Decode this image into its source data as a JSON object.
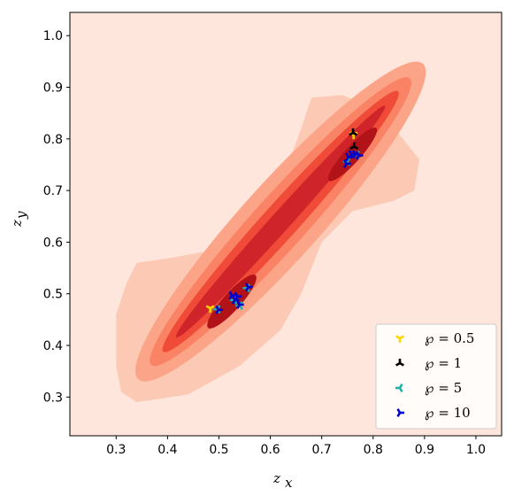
{
  "chart_data": {
    "type": "scatter",
    "xlabel_main": "z",
    "xlabel_sub": "x",
    "ylabel_main": "z",
    "ylabel_sub": "y",
    "xlim": [
      0.21,
      1.05
    ],
    "ylim": [
      0.225,
      1.045
    ],
    "x_ticks": [
      0.3,
      0.4,
      0.5,
      0.6,
      0.7,
      0.8,
      0.9,
      1.0
    ],
    "x_tick_labels": [
      "0.3",
      "0.4",
      "0.5",
      "0.6",
      "0.7",
      "0.8",
      "0.9",
      "1.0"
    ],
    "y_ticks": [
      0.3,
      0.4,
      0.5,
      0.6,
      0.7,
      0.8,
      0.9,
      1.0
    ],
    "y_tick_labels": [
      "0.3",
      "0.4",
      "0.5",
      "0.6",
      "0.7",
      "0.8",
      "0.9",
      "1.0"
    ],
    "grid": false,
    "background_color": "#fee6dc",
    "density_contour": {
      "description": "filled KDE contour along diagonal from (0.48,0.47) to (0.77,0.79)",
      "levels_colors": [
        "#fcc9b4",
        "#fca487",
        "#f98364",
        "#ef4b38",
        "#d0242b",
        "#b11318"
      ]
    },
    "legend_position": "lower right",
    "series": [
      {
        "name": "℘ = 0.5",
        "color": "#ffd700",
        "marker": "tri_down",
        "points": [
          [
            0.483,
            0.472
          ],
          [
            0.762,
            0.808
          ]
        ]
      },
      {
        "name": "℘ = 1",
        "color": "#000000",
        "marker": "tri_up",
        "points": [
          [
            0.761,
            0.812
          ],
          [
            0.763,
            0.785
          ]
        ]
      },
      {
        "name": "℘ = 5",
        "color": "#20b2aa",
        "marker": "tri_left",
        "points": [
          [
            0.497,
            0.47
          ],
          [
            0.53,
            0.488
          ],
          [
            0.541,
            0.477
          ],
          [
            0.555,
            0.511
          ],
          [
            0.75,
            0.756
          ],
          [
            0.768,
            0.769
          ]
        ]
      },
      {
        "name": "℘ = 10",
        "color": "#0000cd",
        "marker": "tri_right",
        "points": [
          [
            0.499,
            0.469
          ],
          [
            0.525,
            0.497
          ],
          [
            0.531,
            0.488
          ],
          [
            0.536,
            0.495
          ],
          [
            0.54,
            0.479
          ],
          [
            0.557,
            0.513
          ],
          [
            0.748,
            0.752
          ],
          [
            0.752,
            0.765
          ],
          [
            0.758,
            0.77
          ],
          [
            0.765,
            0.77
          ],
          [
            0.772,
            0.768
          ]
        ]
      }
    ]
  }
}
